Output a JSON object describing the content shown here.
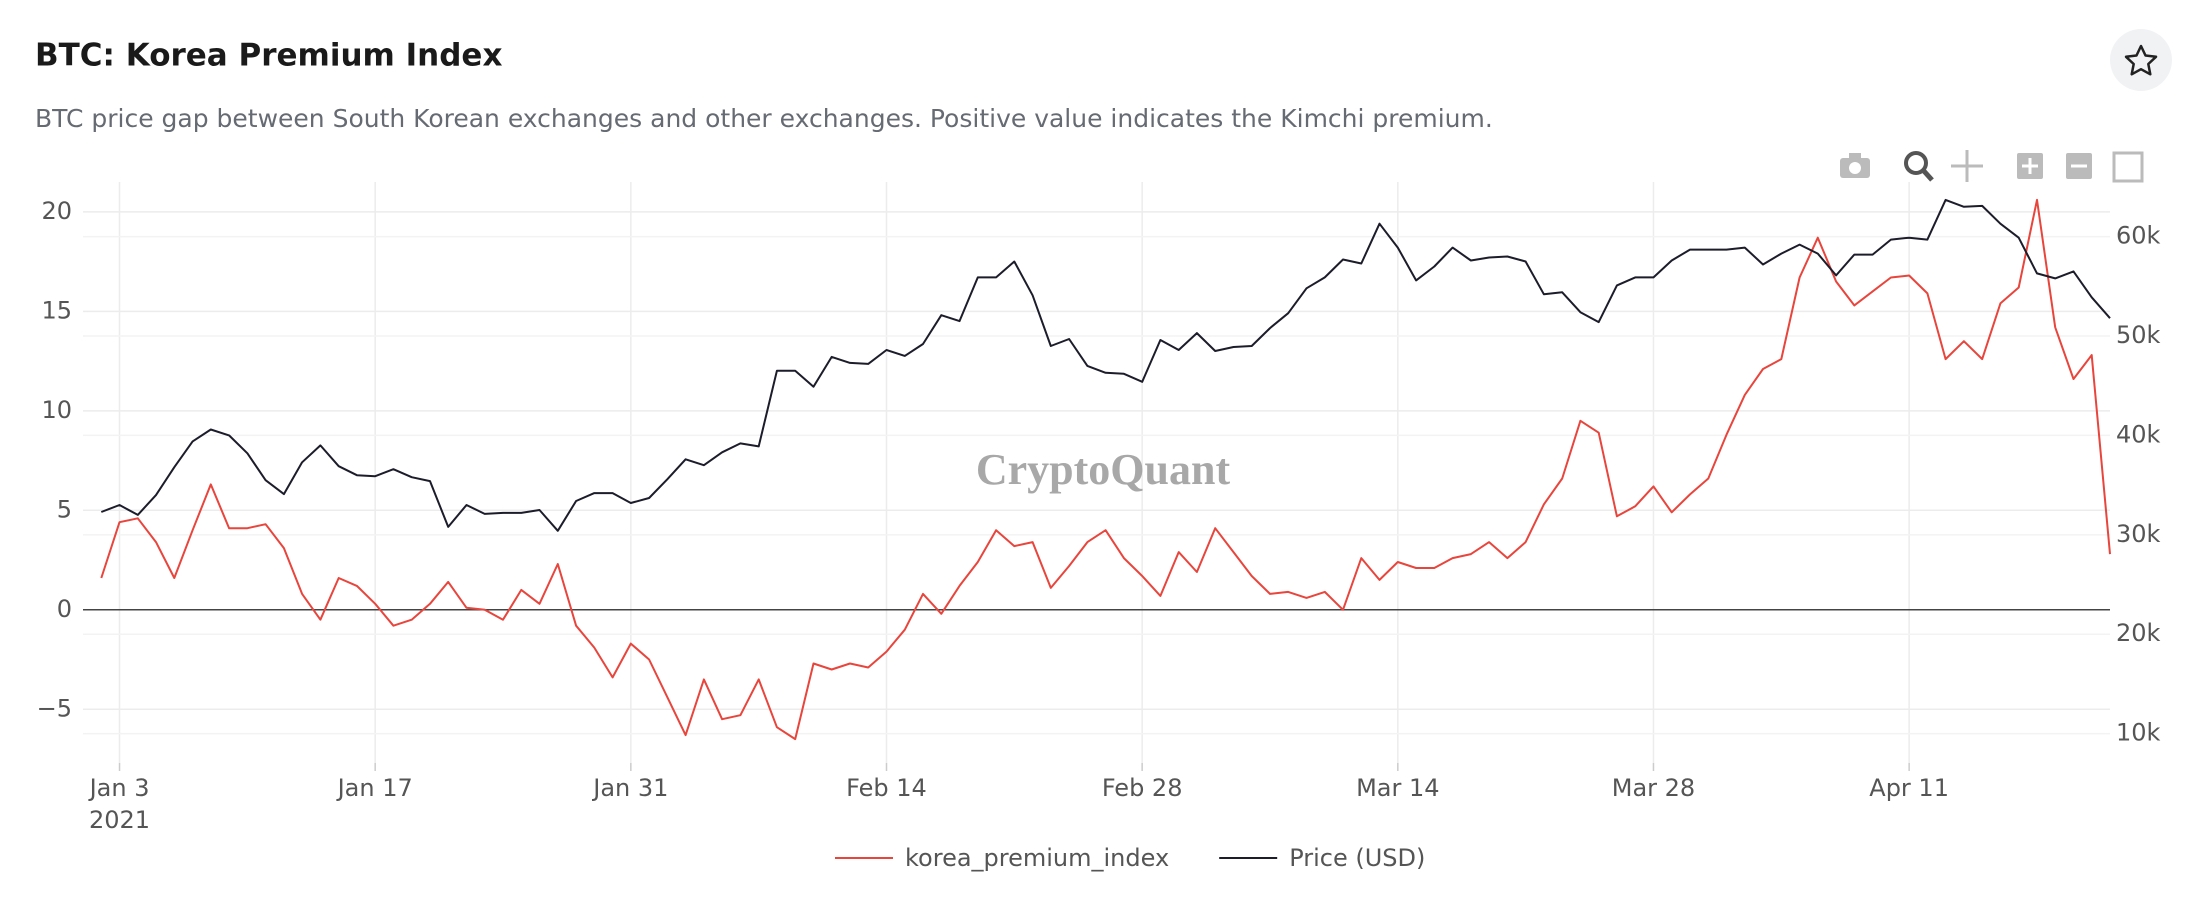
{
  "chart_data": {
    "type": "line",
    "title": "BTC: Korea Premium Index",
    "subtitle": "BTC price gap between South Korean exchanges and other exchanges. Positive value indicates the Kimchi premium.",
    "watermark": "CryptoQuant",
    "x": [
      "2021-01-02",
      "2021-01-03",
      "2021-01-04",
      "2021-01-05",
      "2021-01-06",
      "2021-01-07",
      "2021-01-08",
      "2021-01-09",
      "2021-01-10",
      "2021-01-11",
      "2021-01-12",
      "2021-01-13",
      "2021-01-14",
      "2021-01-15",
      "2021-01-16",
      "2021-01-17",
      "2021-01-18",
      "2021-01-19",
      "2021-01-20",
      "2021-01-21",
      "2021-01-22",
      "2021-01-23",
      "2021-01-24",
      "2021-01-25",
      "2021-01-26",
      "2021-01-27",
      "2021-01-28",
      "2021-01-29",
      "2021-01-30",
      "2021-01-31",
      "2021-02-01",
      "2021-02-02",
      "2021-02-03",
      "2021-02-04",
      "2021-02-05",
      "2021-02-06",
      "2021-02-07",
      "2021-02-08",
      "2021-02-09",
      "2021-02-10",
      "2021-02-11",
      "2021-02-12",
      "2021-02-13",
      "2021-02-14",
      "2021-02-15",
      "2021-02-16",
      "2021-02-17",
      "2021-02-18",
      "2021-02-19",
      "2021-02-20",
      "2021-02-21",
      "2021-02-22",
      "2021-02-23",
      "2021-02-24",
      "2021-02-25",
      "2021-02-26",
      "2021-02-27",
      "2021-02-28",
      "2021-03-01",
      "2021-03-02",
      "2021-03-03",
      "2021-03-04",
      "2021-03-05",
      "2021-03-06",
      "2021-03-07",
      "2021-03-08",
      "2021-03-09",
      "2021-03-10",
      "2021-03-11",
      "2021-03-12",
      "2021-03-13",
      "2021-03-14",
      "2021-03-15",
      "2021-03-16",
      "2021-03-17",
      "2021-03-18",
      "2021-03-19",
      "2021-03-20",
      "2021-03-21",
      "2021-03-22",
      "2021-03-23",
      "2021-03-24",
      "2021-03-25",
      "2021-03-26",
      "2021-03-27",
      "2021-03-28",
      "2021-03-29",
      "2021-03-30",
      "2021-03-31",
      "2021-04-01",
      "2021-04-02",
      "2021-04-03",
      "2021-04-04",
      "2021-04-05",
      "2021-04-06",
      "2021-04-07",
      "2021-04-08",
      "2021-04-09",
      "2021-04-10",
      "2021-04-11",
      "2021-04-12",
      "2021-04-13",
      "2021-04-14",
      "2021-04-15",
      "2021-04-16",
      "2021-04-17",
      "2021-04-18",
      "2021-04-19",
      "2021-04-20",
      "2021-04-21",
      "2021-04-22"
    ],
    "xlim": [
      "2021-01-01",
      "2021-04-22"
    ],
    "xticks": [
      {
        "value": "2021-01-03",
        "label": "Jan 3"
      },
      {
        "value": "2021-01-17",
        "label": "Jan 17"
      },
      {
        "value": "2021-01-31",
        "label": "Jan 31"
      },
      {
        "value": "2021-02-14",
        "label": "Feb 14"
      },
      {
        "value": "2021-02-28",
        "label": "Feb 28"
      },
      {
        "value": "2021-03-14",
        "label": "Mar 14"
      },
      {
        "value": "2021-03-28",
        "label": "Mar 28"
      },
      {
        "value": "2021-04-11",
        "label": "Apr 11"
      }
    ],
    "x_year_label": "2021",
    "ylim": [
      -7.7,
      21.5
    ],
    "yticks": [
      {
        "value": -5,
        "label": "−5"
      },
      0,
      5,
      10,
      15,
      20
    ],
    "y2lim": [
      7040,
      65500
    ],
    "y2ticks": [
      {
        "value": 10000,
        "label": "10k"
      },
      {
        "value": 20000,
        "label": "20k"
      },
      {
        "value": 30000,
        "label": "30k"
      },
      {
        "value": 40000,
        "label": "40k"
      },
      {
        "value": 50000,
        "label": "50k"
      },
      {
        "value": 60000,
        "label": "60k"
      }
    ],
    "grid": true,
    "zeroline": true,
    "legend": "bottom",
    "series": [
      {
        "name": "korea_premium_index",
        "color": "#e8453c",
        "axis": "y",
        "values": [
          1.6,
          4.4,
          4.6,
          3.4,
          1.6,
          4.0,
          6.3,
          4.1,
          4.1,
          4.3,
          3.1,
          0.8,
          -0.5,
          1.6,
          1.2,
          0.3,
          -0.8,
          -0.5,
          0.3,
          1.4,
          0.1,
          0.0,
          -0.5,
          1.0,
          0.3,
          2.3,
          -0.8,
          -1.9,
          -3.4,
          -1.7,
          -2.5,
          -4.4,
          -6.3,
          -3.5,
          -5.5,
          -5.3,
          -3.5,
          -5.9,
          -6.5,
          -2.7,
          -3.0,
          -2.7,
          -2.9,
          -2.1,
          -1.0,
          0.8,
          -0.2,
          1.2,
          2.4,
          4.0,
          3.2,
          3.4,
          1.1,
          2.2,
          3.4,
          4.0,
          2.6,
          1.7,
          0.7,
          2.9,
          1.9,
          4.1,
          2.9,
          1.7,
          0.8,
          0.9,
          0.6,
          0.9,
          0.0,
          2.6,
          1.5,
          2.4,
          2.1,
          2.1,
          2.6,
          2.8,
          3.4,
          2.6,
          3.4,
          5.3,
          6.6,
          9.5,
          8.9,
          4.7,
          5.2,
          6.2,
          4.9,
          5.8,
          6.6,
          8.8,
          10.8,
          12.1,
          12.6,
          16.7,
          18.7,
          16.5,
          15.3,
          16.0,
          16.7,
          16.8,
          15.9,
          12.6,
          13.5,
          12.6,
          15.4,
          16.2,
          20.6,
          14.2,
          11.6,
          12.8,
          2.8
        ]
      },
      {
        "name": "Price (USD)",
        "color": "#1c1c2b",
        "axis": "y2",
        "values": [
          32300,
          33000,
          32000,
          34000,
          36800,
          39400,
          40600,
          40000,
          38200,
          35500,
          34100,
          37300,
          39000,
          36900,
          36000,
          35900,
          36600,
          35800,
          35400,
          30800,
          33000,
          32100,
          32200,
          32200,
          32500,
          30400,
          33400,
          34200,
          34200,
          33200,
          33700,
          35600,
          37600,
          37000,
          38300,
          39200,
          38900,
          46500,
          46500,
          44900,
          47900,
          47300,
          47200,
          48600,
          48000,
          49200,
          52100,
          51500,
          55900,
          55900,
          57500,
          54100,
          49000,
          49700,
          47000,
          46300,
          46200,
          45400,
          49600,
          48600,
          50300,
          48500,
          48900,
          49000,
          50800,
          52300,
          54800,
          55900,
          57700,
          57300,
          61300,
          58900,
          55600,
          57000,
          58900,
          57600,
          57900,
          58000,
          57500,
          54200,
          54400,
          52400,
          51400,
          55100,
          55900,
          55900,
          57600,
          58700,
          58700,
          58700,
          58900,
          57200,
          58300,
          59200,
          58300,
          56100,
          58200,
          58200,
          59700,
          59900,
          59700,
          63700,
          63000,
          63100,
          61300,
          59900,
          56300,
          55800,
          56500,
          53900,
          51800
        ]
      }
    ]
  }
}
